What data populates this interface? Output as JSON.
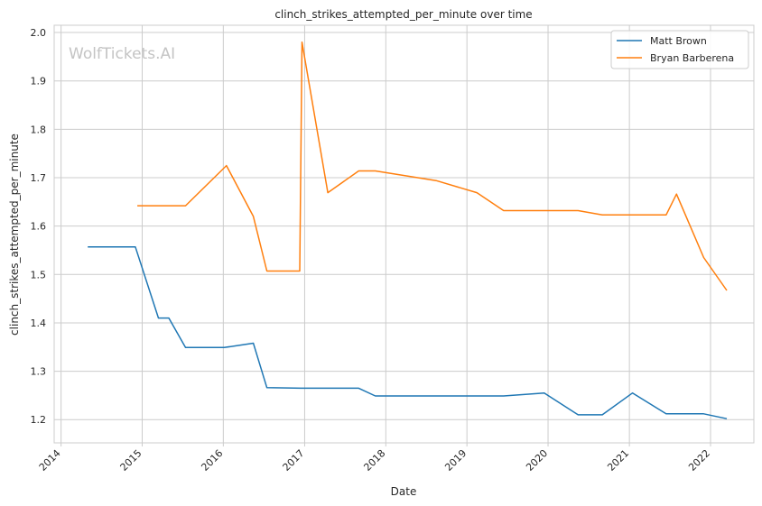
{
  "chart_data": {
    "type": "line",
    "title": "clinch_strikes_attempted_per_minute over time",
    "xlabel": "Date",
    "ylabel": "clinch_strikes_attempted_per_minute",
    "watermark": "WolfTickets.AI",
    "xlim": [
      "2013-12-01",
      "2022-07-15"
    ],
    "ylim": [
      1.152,
      2.015
    ],
    "x_ticks": [
      "2014-01-01",
      "2015-01-01",
      "2016-01-01",
      "2017-01-01",
      "2018-01-01",
      "2019-01-01",
      "2020-01-01",
      "2021-01-01",
      "2022-01-01"
    ],
    "x_tick_labels": [
      "2014",
      "2015",
      "2016",
      "2017",
      "2018",
      "2019",
      "2020",
      "2021",
      "2022"
    ],
    "y_ticks": [
      1.2,
      1.3,
      1.4,
      1.5,
      1.6,
      1.7,
      1.8,
      1.9,
      2.0
    ],
    "y_tick_labels": [
      "1.2",
      "1.3",
      "1.4",
      "1.5",
      "1.6",
      "1.7",
      "1.8",
      "1.9",
      "2.0"
    ],
    "grid": true,
    "legend_position": "top-right",
    "series": [
      {
        "name": "Matt Brown",
        "color": "#1f77b4",
        "x": [
          "2014-05-01",
          "2014-12-01",
          "2015-03-15",
          "2015-05-01",
          "2015-07-15",
          "2016-01-05",
          "2016-05-15",
          "2016-07-15",
          "2016-12-15",
          "2017-09-01",
          "2017-11-15",
          "2018-08-15",
          "2019-06-15",
          "2019-12-15",
          "2020-05-15",
          "2020-09-01",
          "2021-01-15",
          "2021-06-15",
          "2021-12-01",
          "2022-03-15"
        ],
        "y": [
          1.557,
          1.557,
          1.41,
          1.41,
          1.349,
          1.349,
          1.358,
          1.266,
          1.265,
          1.265,
          1.249,
          1.249,
          1.249,
          1.255,
          1.21,
          1.21,
          1.255,
          1.212,
          1.212,
          1.202
        ]
      },
      {
        "name": "Bryan Barberena",
        "color": "#ff7f0e",
        "x": [
          "2014-12-10",
          "2015-07-15",
          "2016-01-15",
          "2016-05-15",
          "2016-07-15",
          "2016-12-10",
          "2016-12-20",
          "2017-04-15",
          "2017-09-01",
          "2017-11-15",
          "2018-08-15",
          "2019-02-15",
          "2019-06-15",
          "2020-05-15",
          "2020-09-01",
          "2021-06-15",
          "2021-08-01",
          "2021-12-01",
          "2022-03-15"
        ],
        "y": [
          1.642,
          1.642,
          1.725,
          1.62,
          1.507,
          1.507,
          1.98,
          1.669,
          1.714,
          1.714,
          1.694,
          1.669,
          1.632,
          1.632,
          1.623,
          1.623,
          1.666,
          1.535,
          1.467
        ]
      }
    ]
  }
}
